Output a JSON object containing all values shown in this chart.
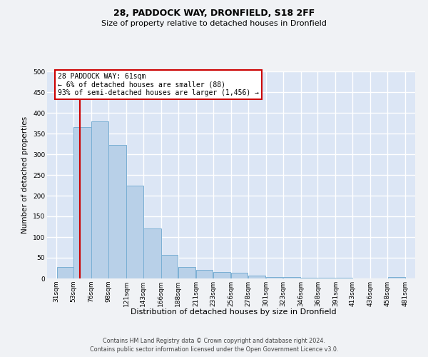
{
  "title1": "28, PADDOCK WAY, DRONFIELD, S18 2FF",
  "title2": "Size of property relative to detached houses in Dronfield",
  "xlabel": "Distribution of detached houses by size in Dronfield",
  "ylabel": "Number of detached properties",
  "footer1": "Contains HM Land Registry data © Crown copyright and database right 2024.",
  "footer2": "Contains public sector information licensed under the Open Government Licence v3.0.",
  "bar_edges": [
    31,
    53,
    76,
    98,
    121,
    143,
    166,
    188,
    211,
    233,
    256,
    278,
    301,
    323,
    346,
    368,
    391,
    413,
    436,
    458,
    481
  ],
  "bar_labels": [
    "31sqm",
    "53sqm",
    "76sqm",
    "98sqm",
    "121sqm",
    "143sqm",
    "166sqm",
    "188sqm",
    "211sqm",
    "233sqm",
    "256sqm",
    "278sqm",
    "301sqm",
    "323sqm",
    "346sqm",
    "368sqm",
    "391sqm",
    "413sqm",
    "436sqm",
    "458sqm",
    "481sqm"
  ],
  "bar_heights": [
    27,
    365,
    380,
    323,
    225,
    120,
    57,
    27,
    20,
    15,
    13,
    7,
    4,
    3,
    1,
    1,
    1,
    0,
    0,
    4,
    0
  ],
  "bar_color": "#b8d0e8",
  "bar_edge_color": "#7aafd4",
  "background_color": "#dce6f5",
  "grid_color": "#ffffff",
  "fig_bg_color": "#f0f2f5",
  "property_sqm": 61,
  "property_line_color": "#cc0000",
  "annotation_line1": "28 PADDOCK WAY: 61sqm",
  "annotation_line2": "← 6% of detached houses are smaller (88)",
  "annotation_line3": "93% of semi-detached houses are larger (1,456) →",
  "annotation_box_color": "#ffffff",
  "annotation_border_color": "#cc0000",
  "ylim_min": 0,
  "ylim_max": 500,
  "yticks": [
    0,
    50,
    100,
    150,
    200,
    250,
    300,
    350,
    400,
    450,
    500
  ],
  "title1_fontsize": 9,
  "title2_fontsize": 8,
  "ylabel_fontsize": 7.5,
  "xlabel_fontsize": 8,
  "tick_fontsize": 6.5,
  "annotation_fontsize": 7,
  "footer_fontsize": 5.8
}
